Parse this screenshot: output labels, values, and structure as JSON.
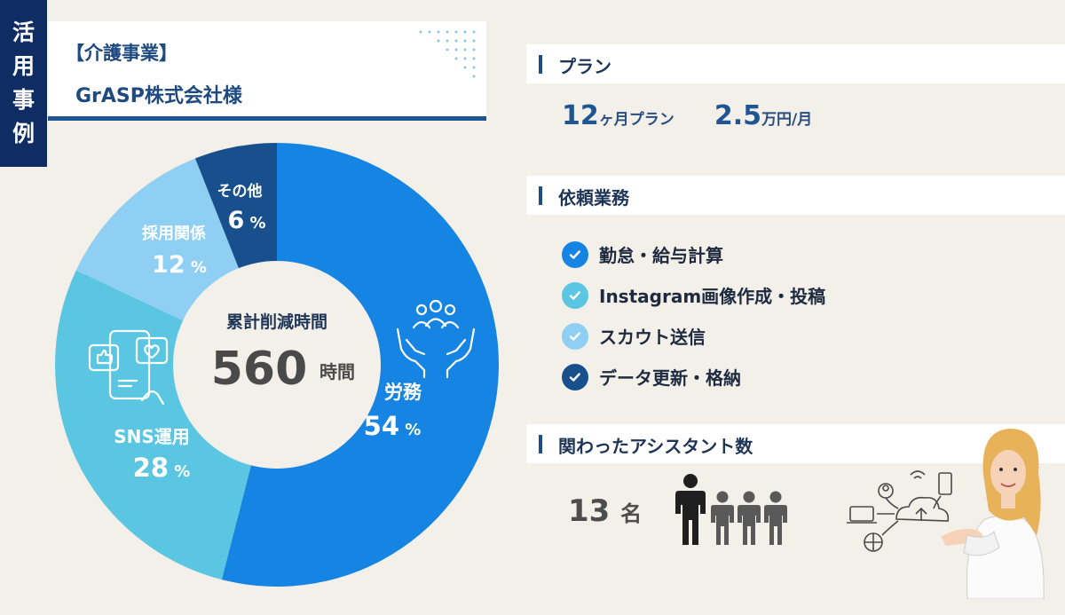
{
  "side_tag": [
    "活",
    "用",
    "事",
    "例"
  ],
  "company": {
    "category": "【介護事業】",
    "name": "GrASP株式会社様"
  },
  "center": {
    "title": "累計削減時間",
    "value": "560",
    "unit": "時間"
  },
  "chart_data": {
    "type": "pie",
    "donut": true,
    "categories": [
      "労務",
      "SNS運用",
      "採用関係",
      "その他"
    ],
    "values": [
      54,
      28,
      12,
      6
    ],
    "value_suffix": "%",
    "colors": [
      "#1684e3",
      "#5ac6e2",
      "#8fcff4",
      "#17508c"
    ],
    "center_label": "累計削減時間",
    "center_value": "560 時間"
  },
  "plan": {
    "title": "プラン",
    "months_value": "12",
    "months_unit": "ヶ月プラン",
    "price_value": "2.5",
    "price_unit": "万円/月"
  },
  "tasks": {
    "title": "依頼業務",
    "items": [
      {
        "label": "勤怠・給与計算",
        "color": "#1684e3"
      },
      {
        "label": "Instagram画像作成・投稿",
        "color": "#5ac6e2"
      },
      {
        "label": "スカウト送信",
        "color": "#8fcff4"
      },
      {
        "label": "データ更新・格納",
        "color": "#17508c"
      }
    ]
  },
  "assistants": {
    "title": "関わったアシスタント数",
    "count": "13",
    "unit": "名"
  }
}
